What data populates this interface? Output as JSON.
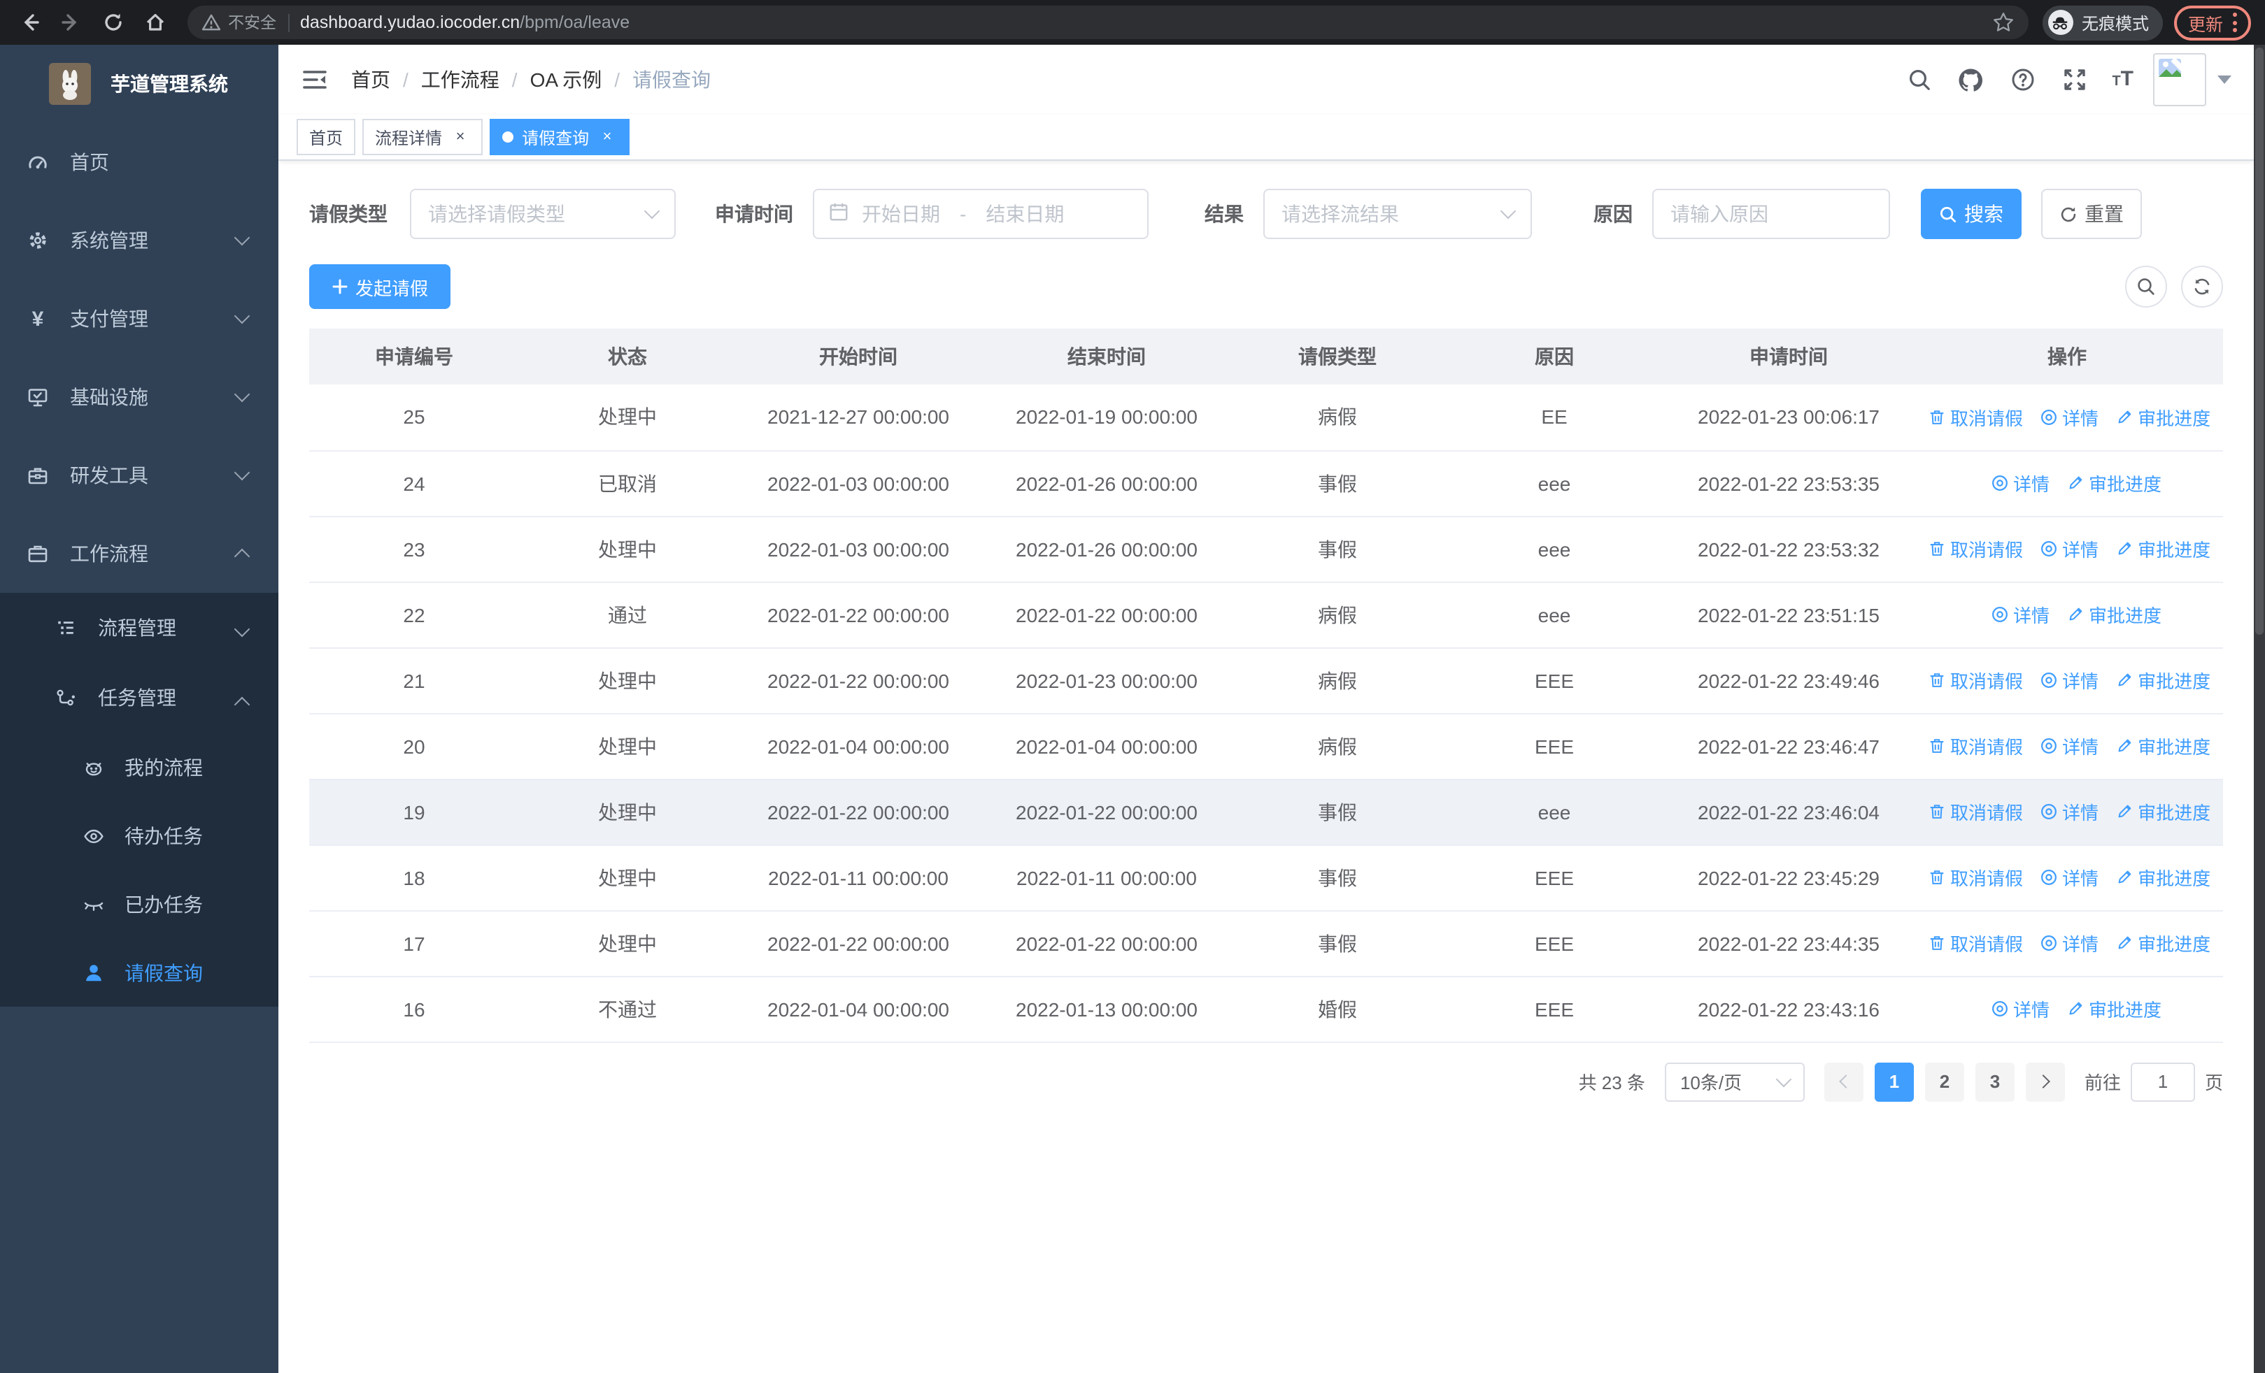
{
  "colors": {
    "primary": "#409eff",
    "sidebar_bg": "#304156",
    "submenu_bg": "#1f2d3d",
    "update_accent": "#ef887d"
  },
  "browser": {
    "security_label": "不安全",
    "url_host": "dashboard.yudao.iocoder.cn",
    "url_path": "/bpm/oa/leave",
    "incognito_label": "无痕模式",
    "update_label": "更新"
  },
  "sidebar": {
    "title": "芋道管理系统",
    "items": [
      {
        "label": "首页"
      },
      {
        "label": "系统管理"
      },
      {
        "label": "支付管理",
        "glyph": "¥"
      },
      {
        "label": "基础设施"
      },
      {
        "label": "研发工具"
      },
      {
        "label": "工作流程"
      },
      {
        "label": "流程管理"
      },
      {
        "label": "任务管理"
      },
      {
        "label": "我的流程"
      },
      {
        "label": "待办任务"
      },
      {
        "label": "已办任务"
      },
      {
        "label": "请假查询"
      }
    ]
  },
  "header": {
    "breadcrumb": [
      "首页",
      "工作流程",
      "OA 示例",
      "请假查询"
    ]
  },
  "tabs": [
    {
      "label": "首页"
    },
    {
      "label": "流程详情"
    },
    {
      "label": "请假查询"
    }
  ],
  "icons": {
    "close": "×"
  },
  "filters": {
    "leave_type_label": "请假类型",
    "leave_type_placeholder": "请选择请假类型",
    "apply_time_label": "申请时间",
    "start_date_placeholder": "开始日期",
    "range_separator": "-",
    "end_date_placeholder": "结束日期",
    "result_label": "结果",
    "result_placeholder": "请选择流结果",
    "reason_label": "原因",
    "reason_placeholder": "请输入原因",
    "search_label": "搜索",
    "reset_label": "重置"
  },
  "toolbar": {
    "create_label": "发起请假"
  },
  "table": {
    "columns": [
      "申请编号",
      "状态",
      "开始时间",
      "结束时间",
      "请假类型",
      "原因",
      "申请时间",
      "操作"
    ],
    "action_labels": {
      "cancel": "取消请假",
      "detail": "详情",
      "progress": "审批进度"
    },
    "rows": [
      {
        "id": "25",
        "status": "处理中",
        "start": "2021-12-27 00:00:00",
        "end": "2022-01-19 00:00:00",
        "type": "病假",
        "reason": "EE",
        "applied": "2022-01-23 00:06:17",
        "actions": [
          "cancel",
          "detail",
          "progress"
        ],
        "hover": false
      },
      {
        "id": "24",
        "status": "已取消",
        "start": "2022-01-03 00:00:00",
        "end": "2022-01-26 00:00:00",
        "type": "事假",
        "reason": "eee",
        "applied": "2022-01-22 23:53:35",
        "actions": [
          "detail",
          "progress"
        ],
        "hover": false
      },
      {
        "id": "23",
        "status": "处理中",
        "start": "2022-01-03 00:00:00",
        "end": "2022-01-26 00:00:00",
        "type": "事假",
        "reason": "eee",
        "applied": "2022-01-22 23:53:32",
        "actions": [
          "cancel",
          "detail",
          "progress"
        ],
        "hover": false
      },
      {
        "id": "22",
        "status": "通过",
        "start": "2022-01-22 00:00:00",
        "end": "2022-01-22 00:00:00",
        "type": "病假",
        "reason": "eee",
        "applied": "2022-01-22 23:51:15",
        "actions": [
          "detail",
          "progress"
        ],
        "hover": false
      },
      {
        "id": "21",
        "status": "处理中",
        "start": "2022-01-22 00:00:00",
        "end": "2022-01-23 00:00:00",
        "type": "病假",
        "reason": "EEE",
        "applied": "2022-01-22 23:49:46",
        "actions": [
          "cancel",
          "detail",
          "progress"
        ],
        "hover": false
      },
      {
        "id": "20",
        "status": "处理中",
        "start": "2022-01-04 00:00:00",
        "end": "2022-01-04 00:00:00",
        "type": "病假",
        "reason": "EEE",
        "applied": "2022-01-22 23:46:47",
        "actions": [
          "cancel",
          "detail",
          "progress"
        ],
        "hover": false
      },
      {
        "id": "19",
        "status": "处理中",
        "start": "2022-01-22 00:00:00",
        "end": "2022-01-22 00:00:00",
        "type": "事假",
        "reason": "eee",
        "applied": "2022-01-22 23:46:04",
        "actions": [
          "cancel",
          "detail",
          "progress"
        ],
        "hover": true
      },
      {
        "id": "18",
        "status": "处理中",
        "start": "2022-01-11 00:00:00",
        "end": "2022-01-11 00:00:00",
        "type": "事假",
        "reason": "EEE",
        "applied": "2022-01-22 23:45:29",
        "actions": [
          "cancel",
          "detail",
          "progress"
        ],
        "hover": false
      },
      {
        "id": "17",
        "status": "处理中",
        "start": "2022-01-22 00:00:00",
        "end": "2022-01-22 00:00:00",
        "type": "事假",
        "reason": "EEE",
        "applied": "2022-01-22 23:44:35",
        "actions": [
          "cancel",
          "detail",
          "progress"
        ],
        "hover": false
      },
      {
        "id": "16",
        "status": "不通过",
        "start": "2022-01-04 00:00:00",
        "end": "2022-01-13 00:00:00",
        "type": "婚假",
        "reason": "EEE",
        "applied": "2022-01-22 23:43:16",
        "actions": [
          "detail",
          "progress"
        ],
        "hover": false
      }
    ]
  },
  "pagination": {
    "total_label": "共 23 条",
    "page_size_label": "10条/页",
    "pages": [
      "1",
      "2",
      "3"
    ],
    "active_page": "1",
    "goto_label": "前往",
    "goto_value": "1",
    "page_suffix": "页"
  }
}
